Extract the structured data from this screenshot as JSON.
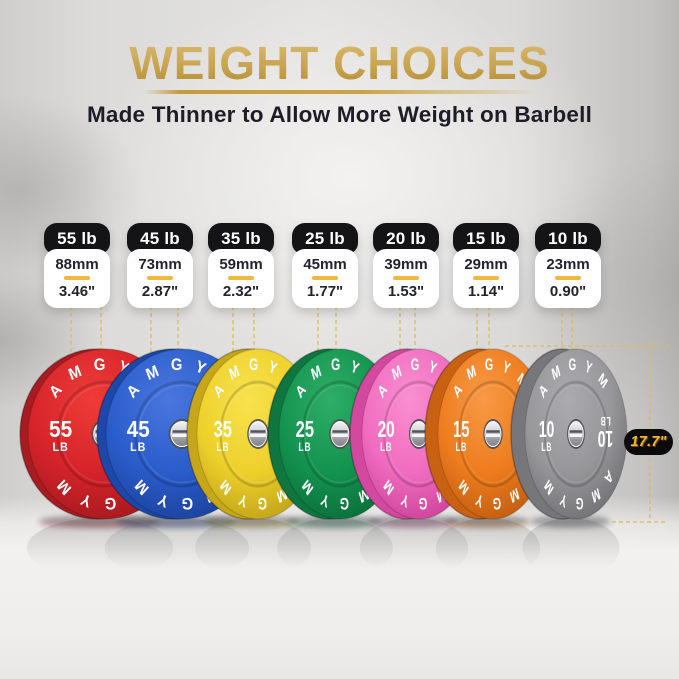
{
  "header": {
    "title": "WEIGHT CHOICES",
    "subtitle": "Made Thinner to Allow More Weight on Barbell"
  },
  "brand": "AMGYM",
  "diameter_badge": "17.7\"",
  "accent": {
    "gold": "#c9a345",
    "dashed_line": "#debc55",
    "badge_bg": "#0b0b0d",
    "badge_text": "#f3b92f",
    "card_header_bg": "#141416",
    "card_text": "#23232d",
    "title_gold": "#c7a24c",
    "subtitle_color": "#1d1d27"
  },
  "plates": [
    {
      "id": "55lb",
      "weight_label": "55 lb",
      "thickness_mm": "88mm",
      "thickness_in": "3.46\"",
      "weight": "55",
      "unit": "LB",
      "colors": {
        "light": "#ef3c38",
        "main": "#d5232a",
        "edge": "#9e191e",
        "rim": "#a81c21"
      }
    },
    {
      "id": "45lb",
      "weight_label": "45 lb",
      "thickness_mm": "73mm",
      "thickness_in": "2.87\"",
      "weight": "45",
      "unit": "LB",
      "colors": {
        "light": "#4a77dd",
        "main": "#2a5ccb",
        "edge": "#1a3f96",
        "rim": "#1d47a8"
      }
    },
    {
      "id": "35lb",
      "weight_label": "35 lb",
      "thickness_mm": "59mm",
      "thickness_in": "2.32\"",
      "weight": "35",
      "unit": "LB",
      "colors": {
        "light": "#f8e24e",
        "main": "#eed02b",
        "edge": "#bb9d15",
        "rim": "#c7a71a"
      }
    },
    {
      "id": "25lb",
      "weight_label": "25 lb",
      "thickness_mm": "45mm",
      "thickness_in": "1.77\"",
      "weight": "25",
      "unit": "LB",
      "colors": {
        "light": "#2fae66",
        "main": "#13934f",
        "edge": "#0b6a38",
        "rim": "#0e763e"
      }
    },
    {
      "id": "20lb",
      "weight_label": "20 lb",
      "thickness_mm": "39mm",
      "thickness_in": "1.53\"",
      "weight": "20",
      "unit": "LB",
      "colors": {
        "light": "#f98fd0",
        "main": "#f06cbf",
        "edge": "#c83e95",
        "rim": "#d4489f"
      }
    },
    {
      "id": "15lb",
      "weight_label": "15 lb",
      "thickness_mm": "29mm",
      "thickness_in": "1.14\"",
      "weight": "15",
      "unit": "LB",
      "colors": {
        "light": "#f79a46",
        "main": "#ee7c1e",
        "edge": "#bc5a0e",
        "rim": "#c96112"
      }
    },
    {
      "id": "10lb",
      "weight_label": "10 lb",
      "thickness_mm": "23mm",
      "thickness_in": "0.90\"",
      "weight": "10",
      "unit": "LB",
      "colors": {
        "light": "#ababaf",
        "main": "#97979a",
        "edge": "#6d6d71",
        "rim": "#77777b"
      }
    }
  ]
}
